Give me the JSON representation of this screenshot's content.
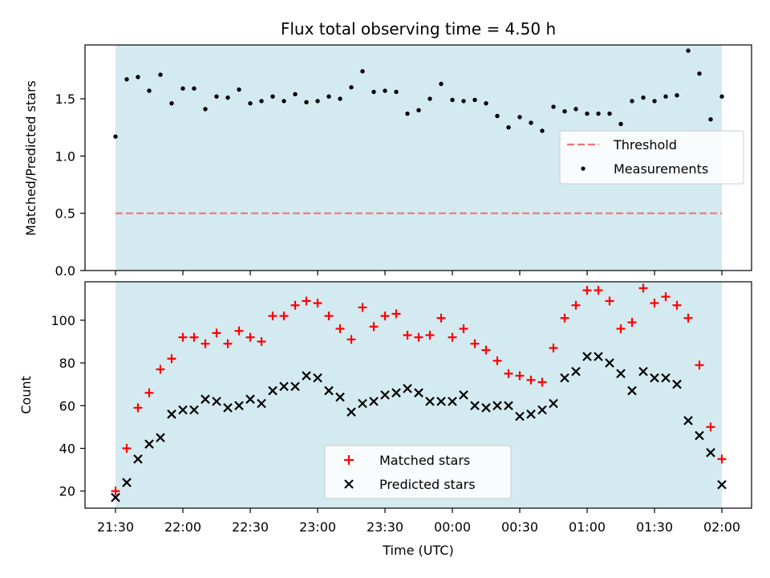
{
  "chart_data": [
    {
      "type": "scatter",
      "title": "Flux total observing time = 4.50 h",
      "ylabel": "Matched/Predicted stars",
      "ylim": [
        0,
        1.97
      ],
      "yticks": [
        "0.0",
        "0.5",
        "1.0",
        "1.5"
      ],
      "yticks_values": [
        0,
        0.5,
        1.0,
        1.5
      ],
      "x_start": "21:30",
      "x_step_minutes": 5,
      "shaded_span": [
        "21:30",
        "02:00"
      ],
      "shade_color": "#d4eaf1",
      "threshold": {
        "name": "Threshold",
        "value": 0.5,
        "color": "#f07575"
      },
      "series": [
        {
          "name": "Measurements",
          "marker": "dot",
          "color": "#000000",
          "values": [
            1.17,
            1.67,
            1.69,
            1.57,
            1.71,
            1.46,
            1.59,
            1.59,
            1.41,
            1.52,
            1.51,
            1.58,
            1.46,
            1.48,
            1.52,
            1.48,
            1.54,
            1.47,
            1.48,
            1.52,
            1.5,
            1.6,
            1.74,
            1.56,
            1.57,
            1.56,
            1.37,
            1.4,
            1.5,
            1.63,
            1.49,
            1.48,
            1.49,
            1.46,
            1.35,
            1.25,
            1.34,
            1.29,
            1.22,
            1.43,
            1.39,
            1.41,
            1.37,
            1.37,
            1.37,
            1.28,
            1.48,
            1.51,
            1.48,
            1.52,
            1.53,
            1.92,
            1.72,
            1.32,
            1.52
          ]
        }
      ],
      "legend": "center-right"
    },
    {
      "type": "scatter",
      "xlabel": "Time (UTC)",
      "ylabel": "Count",
      "ylim": [
        12,
        118
      ],
      "yticks": [
        "20",
        "40",
        "60",
        "80",
        "100"
      ],
      "yticks_values": [
        20,
        40,
        60,
        80,
        100
      ],
      "x_start": "21:30",
      "x_step_minutes": 5,
      "xticks": [
        "21:30",
        "22:00",
        "22:30",
        "23:00",
        "23:30",
        "00:00",
        "00:30",
        "01:00",
        "01:30",
        "02:00"
      ],
      "shaded_span": [
        "21:30",
        "02:00"
      ],
      "series": [
        {
          "name": "Matched stars",
          "marker": "plus",
          "color": "#ff0000",
          "values": [
            20,
            40,
            59,
            66,
            77,
            82,
            92,
            92,
            89,
            94,
            89,
            95,
            92,
            90,
            102,
            102,
            107,
            109,
            108,
            102,
            96,
            91,
            106,
            97,
            102,
            103,
            93,
            92,
            93,
            101,
            92,
            96,
            89,
            86,
            81,
            75,
            74,
            72,
            71,
            87,
            101,
            107,
            114,
            114,
            109,
            96,
            99,
            115,
            108,
            111,
            107,
            101,
            79,
            50,
            35
          ]
        },
        {
          "name": "Predicted stars",
          "marker": "x",
          "color": "#000000",
          "values": [
            17,
            24,
            35,
            42,
            45,
            56,
            58,
            58,
            63,
            62,
            59,
            60,
            63,
            61,
            67,
            69,
            69,
            74,
            73,
            67,
            64,
            57,
            61,
            62,
            65,
            66,
            68,
            66,
            62,
            62,
            62,
            65,
            60,
            59,
            60,
            60,
            55,
            56,
            58,
            61,
            73,
            76,
            83,
            83,
            80,
            75,
            67,
            76,
            73,
            73,
            70,
            53,
            46,
            38,
            23
          ]
        }
      ],
      "legend": "lower-center"
    }
  ]
}
